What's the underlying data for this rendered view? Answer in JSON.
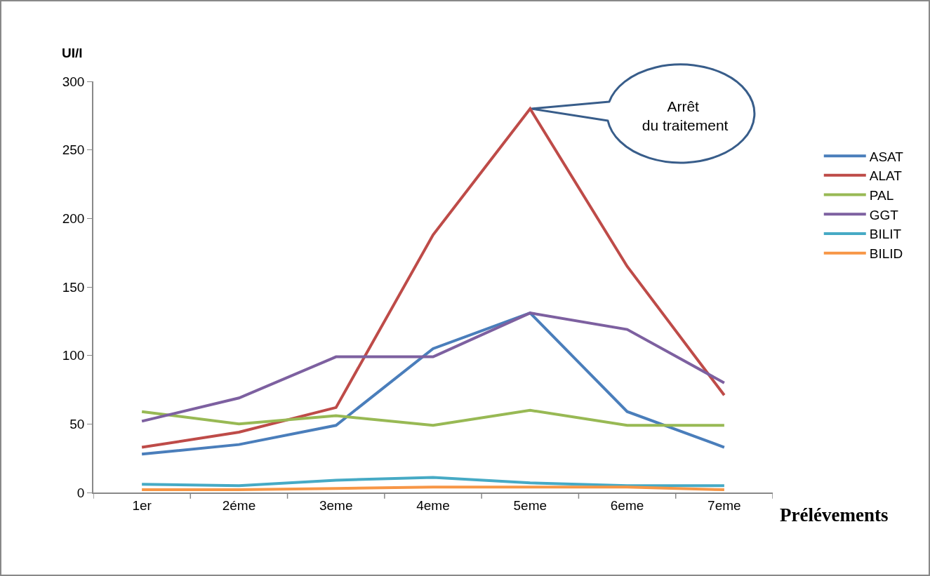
{
  "chart_data": {
    "type": "line",
    "ylabel": "UI/l",
    "xlabel": "Prélévements",
    "categories": [
      "1er",
      "2éme",
      "3eme",
      "4eme",
      "5eme",
      "6eme",
      "7eme"
    ],
    "series": [
      {
        "name": "ASAT",
        "color": "#4a7ebb",
        "values": [
          28,
          35,
          49,
          105,
          131,
          59,
          33
        ]
      },
      {
        "name": "ALAT",
        "color": "#be4b48",
        "values": [
          33,
          44,
          62,
          188,
          280,
          165,
          71
        ]
      },
      {
        "name": "PAL",
        "color": "#98b954",
        "values": [
          59,
          50,
          56,
          49,
          60,
          49,
          49
        ]
      },
      {
        "name": "GGT",
        "color": "#7d60a0",
        "values": [
          52,
          69,
          99,
          99,
          131,
          119,
          80
        ]
      },
      {
        "name": "BILIT",
        "color": "#46aac5",
        "values": [
          6,
          5,
          9,
          11,
          7,
          5,
          5
        ]
      },
      {
        "name": "BILID",
        "color": "#f79646",
        "values": [
          2,
          2,
          3,
          4,
          4,
          4,
          2
        ]
      }
    ],
    "ylim": [
      0,
      300
    ],
    "yticks": [
      0,
      50,
      100,
      150,
      200,
      250,
      300
    ],
    "grid": false,
    "legend": "right",
    "marker": "none",
    "line_style": "solid",
    "annotations": [
      "Arrêt du traitement"
    ]
  }
}
